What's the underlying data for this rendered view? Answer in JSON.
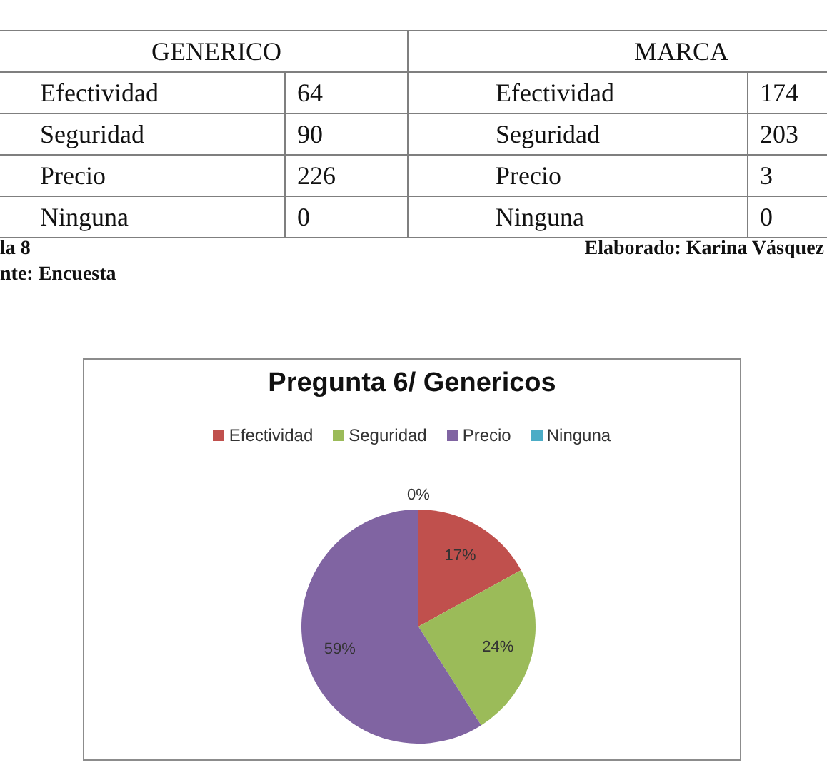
{
  "chart_data": [
    {
      "type": "other",
      "categories": [
        "Efectividad",
        "Seguridad",
        "Precio",
        "Ninguna"
      ],
      "series": [
        {
          "name": "GENERICO",
          "values": [
            64,
            90,
            226,
            0
          ]
        },
        {
          "name": "MARCA",
          "values": [
            174,
            203,
            3,
            0
          ]
        }
      ],
      "data_labels": true,
      "annotations": [
        "la 8",
        "Elaborado: Karina Vásquez",
        "nte: Encuesta"
      ]
    },
    {
      "type": "pie",
      "title": "Pregunta 6/ Genericos",
      "categories": [
        "Efectividad",
        "Seguridad",
        "Precio",
        "Ninguna"
      ],
      "values": [
        17,
        24,
        59,
        0
      ],
      "colors": [
        "#c0504d",
        "#9bbb59",
        "#8064a2",
        "#4bacc6"
      ],
      "value_labels": [
        "17%",
        "24%",
        "59%",
        "0%"
      ],
      "legend": "top"
    }
  ]
}
